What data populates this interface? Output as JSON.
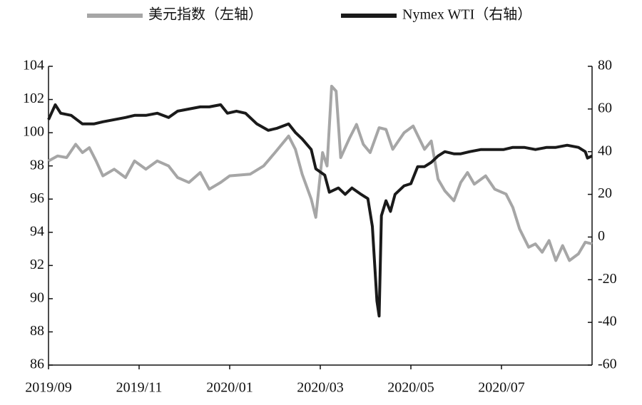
{
  "chart_data": {
    "type": "line",
    "legend": "top",
    "xlim": [
      0,
      12
    ],
    "xticks": [
      {
        "value": 0,
        "label": "2019/09"
      },
      {
        "value": 2,
        "label": "2019/11"
      },
      {
        "value": 4,
        "label": "2020/01"
      },
      {
        "value": 6,
        "label": "2020/03"
      },
      {
        "value": 8,
        "label": "2020/05"
      },
      {
        "value": 10,
        "label": "2020/07"
      }
    ],
    "ylim": [
      86,
      104
    ],
    "yticks": [
      86,
      88,
      90,
      92,
      94,
      96,
      98,
      100,
      102,
      104
    ],
    "y2lim": [
      -60,
      80
    ],
    "y2ticks": [
      -60,
      -40,
      -20,
      0,
      20,
      40,
      60,
      80
    ],
    "series": [
      {
        "name": "美元指数（左轴）",
        "color": "#a6a6a6",
        "x": [
          0,
          0.2,
          0.4,
          0.6,
          0.75,
          0.9,
          1.05,
          1.2,
          1.45,
          1.7,
          1.9,
          2.15,
          2.4,
          2.65,
          2.85,
          3.1,
          3.35,
          3.55,
          3.8,
          4.0,
          4.45,
          4.75,
          5.0,
          5.3,
          5.45,
          5.6,
          5.8,
          5.9,
          6.05,
          6.15,
          6.25,
          6.35,
          6.45,
          6.65,
          6.8,
          6.95,
          7.1,
          7.3,
          7.45,
          7.6,
          7.85,
          8.05,
          8.3,
          8.45,
          8.6,
          8.75,
          8.95,
          9.1,
          9.25,
          9.4,
          9.65,
          9.85,
          10.1,
          10.25,
          10.4,
          10.6,
          10.75,
          10.9,
          11.05,
          11.2,
          11.35,
          11.5,
          11.7,
          11.85,
          12.0
        ],
        "values": [
          98.3,
          98.6,
          98.5,
          99.3,
          98.8,
          99.1,
          98.3,
          97.4,
          97.8,
          97.3,
          98.3,
          97.8,
          98.3,
          98.0,
          97.3,
          97.0,
          97.6,
          96.6,
          97.0,
          97.4,
          97.5,
          98.0,
          98.8,
          99.8,
          99.0,
          97.5,
          96.0,
          94.9,
          98.8,
          98.0,
          102.8,
          102.5,
          98.5,
          99.7,
          100.5,
          99.3,
          98.8,
          100.3,
          100.2,
          99.0,
          100.0,
          100.4,
          99.0,
          99.5,
          97.2,
          96.5,
          95.9,
          97.0,
          97.6,
          96.9,
          97.4,
          96.6,
          96.3,
          95.5,
          94.2,
          93.1,
          93.3,
          92.8,
          93.5,
          92.3,
          93.2,
          92.3,
          92.7,
          93.4,
          93.3
        ]
      },
      {
        "name": "Nymex WTI（右轴）",
        "color": "#1a1a1a",
        "axis": "y2",
        "x": [
          0,
          0.15,
          0.27,
          0.5,
          0.75,
          1.0,
          1.2,
          1.45,
          1.7,
          1.9,
          2.15,
          2.4,
          2.65,
          2.85,
          3.1,
          3.35,
          3.55,
          3.8,
          3.95,
          4.15,
          4.35,
          4.6,
          4.85,
          5.05,
          5.3,
          5.45,
          5.6,
          5.8,
          5.9,
          6.1,
          6.2,
          6.4,
          6.55,
          6.7,
          6.9,
          7.05,
          7.15,
          7.25,
          7.3,
          7.35,
          7.45,
          7.55,
          7.65,
          7.85,
          8.0,
          8.15,
          8.3,
          8.45,
          8.6,
          8.75,
          8.95,
          9.1,
          9.3,
          9.55,
          9.8,
          10.05,
          10.25,
          10.5,
          10.75,
          11.0,
          11.2,
          11.45,
          11.7,
          11.85,
          11.9,
          12.0
        ],
        "values": [
          55,
          62,
          58,
          57,
          53,
          53,
          54,
          55,
          56,
          57,
          57,
          58,
          56,
          59,
          60,
          61,
          61,
          62,
          58,
          59,
          58,
          53,
          50,
          51,
          53,
          49,
          46,
          41,
          32,
          29,
          21,
          23,
          20,
          23,
          20,
          18,
          5,
          -30,
          -37,
          10,
          17,
          12,
          20,
          24,
          25,
          33,
          33,
          35,
          38,
          40,
          39,
          39,
          40,
          41,
          41,
          41,
          42,
          42,
          41,
          42,
          42,
          43,
          42,
          40,
          37,
          38
        ]
      }
    ]
  }
}
